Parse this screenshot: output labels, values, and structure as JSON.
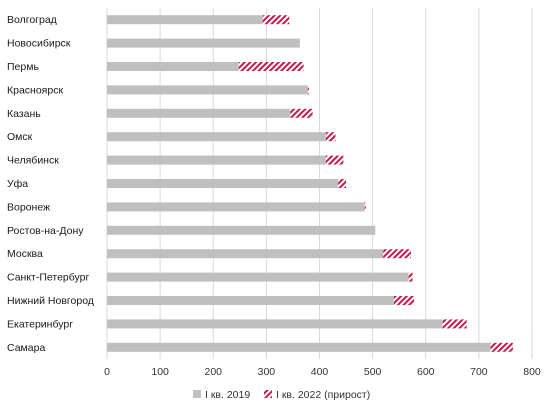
{
  "chart_data": {
    "type": "bar",
    "orientation": "horizontal",
    "stacked": true,
    "categories": [
      "Волгоград",
      "Новосибирск",
      "Пермь",
      "Красноярск",
      "Казань",
      "Омск",
      "Челябинск",
      "Уфа",
      "Воронеж",
      "Ростов-на-Дону",
      "Москва",
      "Санкт-Петербург",
      "Нижний Новгород",
      "Екатеринбург",
      "Самара"
    ],
    "series": [
      {
        "name": "I кв. 2019",
        "color": "#bfbfbf",
        "pattern": "solid",
        "values": [
          293,
          363,
          248,
          378,
          345,
          412,
          412,
          435,
          485,
          505,
          520,
          568,
          540,
          632,
          722
        ]
      },
      {
        "name": "I кв. 2022 (прирост)",
        "color": "#c8184a",
        "pattern": "hatched",
        "values": [
          50,
          0,
          122,
          2,
          42,
          18,
          33,
          15,
          2,
          0,
          52,
          7,
          38,
          45,
          42
        ]
      }
    ],
    "xlim": [
      0,
      800
    ],
    "xticks": [
      0,
      100,
      200,
      300,
      400,
      500,
      600,
      700,
      800
    ],
    "grid": "vertical",
    "legend": "bottom"
  }
}
